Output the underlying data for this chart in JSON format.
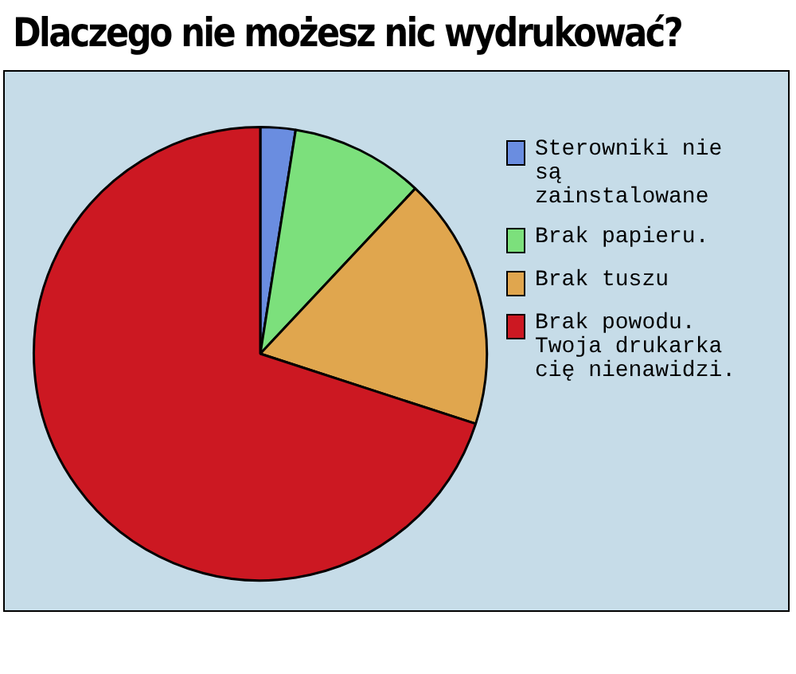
{
  "chart_data": {
    "type": "pie",
    "title": "Dlaczego nie możesz nic wydrukować?",
    "categories": [
      "Sterowniki nie są zainstalowane",
      "Brak papieru.",
      "Brak tuszu",
      "Brak powodu. Twoja drukarka cię nienawidzi."
    ],
    "values": [
      2.5,
      9.5,
      18,
      70
    ],
    "colors": [
      "#6a8de0",
      "#7ce07c",
      "#e0a64e",
      "#cc1822"
    ],
    "legend": "right"
  }
}
